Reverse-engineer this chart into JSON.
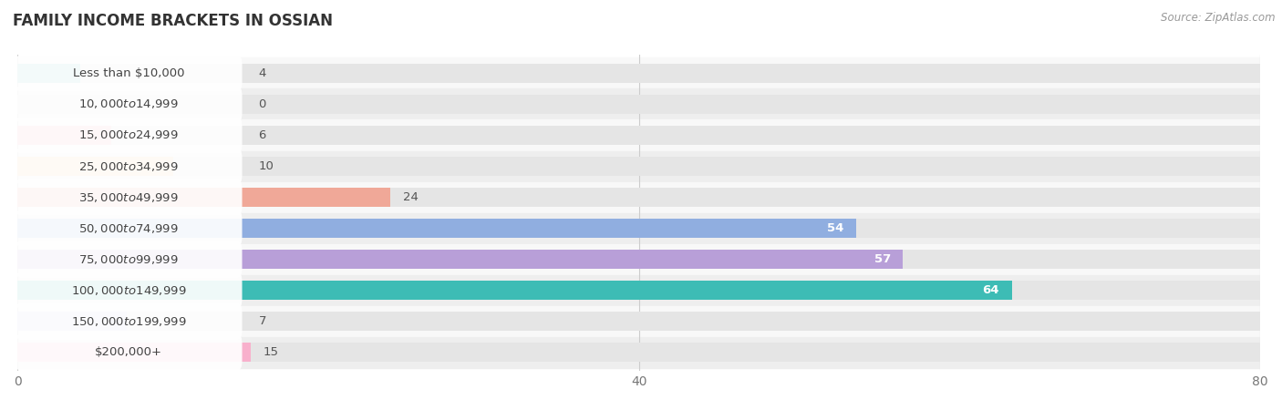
{
  "title": "FAMILY INCOME BRACKETS IN OSSIAN",
  "source": "Source: ZipAtlas.com",
  "categories": [
    "Less than $10,000",
    "$10,000 to $14,999",
    "$15,000 to $24,999",
    "$25,000 to $34,999",
    "$35,000 to $49,999",
    "$50,000 to $74,999",
    "$75,000 to $99,999",
    "$100,000 to $149,999",
    "$150,000 to $199,999",
    "$200,000+"
  ],
  "values": [
    4,
    0,
    6,
    10,
    24,
    54,
    57,
    64,
    7,
    15
  ],
  "bar_colors": [
    "#6dcdc9",
    "#b5b5e8",
    "#f5a0b5",
    "#f8c98a",
    "#f0a898",
    "#90aee0",
    "#b89fd8",
    "#3dbcb5",
    "#c5c5f0",
    "#f8b0cc"
  ],
  "xlim": [
    0,
    80
  ],
  "xticks": [
    0,
    40,
    80
  ],
  "bg_color": "#f0f0f0",
  "row_color_light": "#f8f8f8",
  "row_color_dark": "#eeeeee",
  "bar_bg_color": "#e5e5e5",
  "title_fontsize": 12,
  "label_fontsize": 9.5,
  "value_fontsize": 9.5,
  "bar_height": 0.62
}
